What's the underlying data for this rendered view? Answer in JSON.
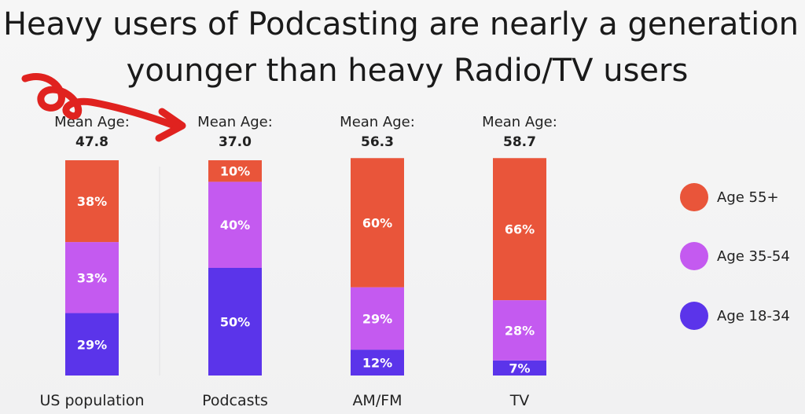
{
  "title": {
    "line1": "Heavy users of Podcasting are nearly a generation",
    "line2": "younger than heavy Radio/TV users"
  },
  "colors": {
    "age_55_plus": "#e9553a",
    "age_35_54": "#c45af0",
    "age_18_34": "#5b34ea",
    "annotation": "#e0221f"
  },
  "chart_data": {
    "type": "bar",
    "stacked": true,
    "orientation": "vertical",
    "title": "Heavy users of Podcasting are nearly a generation younger than heavy Radio/TV users",
    "categories": [
      "US population",
      "Podcasts",
      "AM/FM",
      "TV"
    ],
    "mean_age_label": "Mean Age:",
    "mean_ages": [
      "47.8",
      "37.0",
      "56.3",
      "58.7"
    ],
    "series": [
      {
        "name": "Age 18-34",
        "key": "age_18_34",
        "values": [
          29,
          50,
          12,
          7
        ]
      },
      {
        "name": "Age 35-54",
        "key": "age_35_54",
        "values": [
          33,
          40,
          29,
          28
        ]
      },
      {
        "name": "Age 55+",
        "key": "age_55_plus",
        "values": [
          38,
          10,
          60,
          66
        ]
      }
    ],
    "legend": [
      "Age 55+",
      "Age 35-54",
      "Age 18-34"
    ],
    "legend_position": "right",
    "ylim": [
      0,
      100
    ],
    "grid": false
  }
}
